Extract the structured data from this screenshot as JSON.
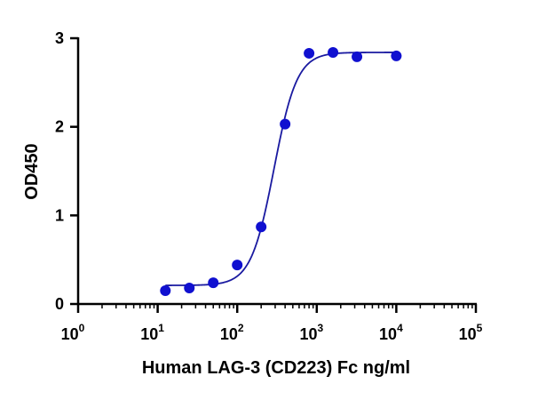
{
  "chart_data": {
    "type": "scatter",
    "title": "",
    "xlabel": "Human LAG-3 (CD223) Fc ng/ml",
    "ylabel": "OD450",
    "xscale": "log",
    "xlim": [
      1,
      100000
    ],
    "ylim": [
      0,
      3
    ],
    "grid": false,
    "legend": "none",
    "x_ticks": [
      1,
      10,
      100,
      1000,
      10000,
      100000
    ],
    "x_tick_labels": [
      {
        "base": "10",
        "exp": "0"
      },
      {
        "base": "10",
        "exp": "1"
      },
      {
        "base": "10",
        "exp": "2"
      },
      {
        "base": "10",
        "exp": "3"
      },
      {
        "base": "10",
        "exp": "4"
      },
      {
        "base": "10",
        "exp": "5"
      }
    ],
    "y_ticks": [
      0,
      1,
      2,
      3
    ],
    "y_tick_labels": [
      "0",
      "1",
      "2",
      "3"
    ],
    "series": [
      {
        "x": [
          12.5,
          25,
          50,
          100,
          200,
          400,
          800,
          1600,
          3200,
          10000
        ],
        "y": [
          0.15,
          0.18,
          0.24,
          0.44,
          0.87,
          2.03,
          2.83,
          2.84,
          2.79,
          2.8
        ],
        "color": "#1010d0"
      }
    ],
    "fit": {
      "model": "4PL",
      "bottom": 0.21,
      "top": 2.84,
      "ec50": 290,
      "hill": 3.0,
      "color": "#1a1aa0"
    }
  }
}
